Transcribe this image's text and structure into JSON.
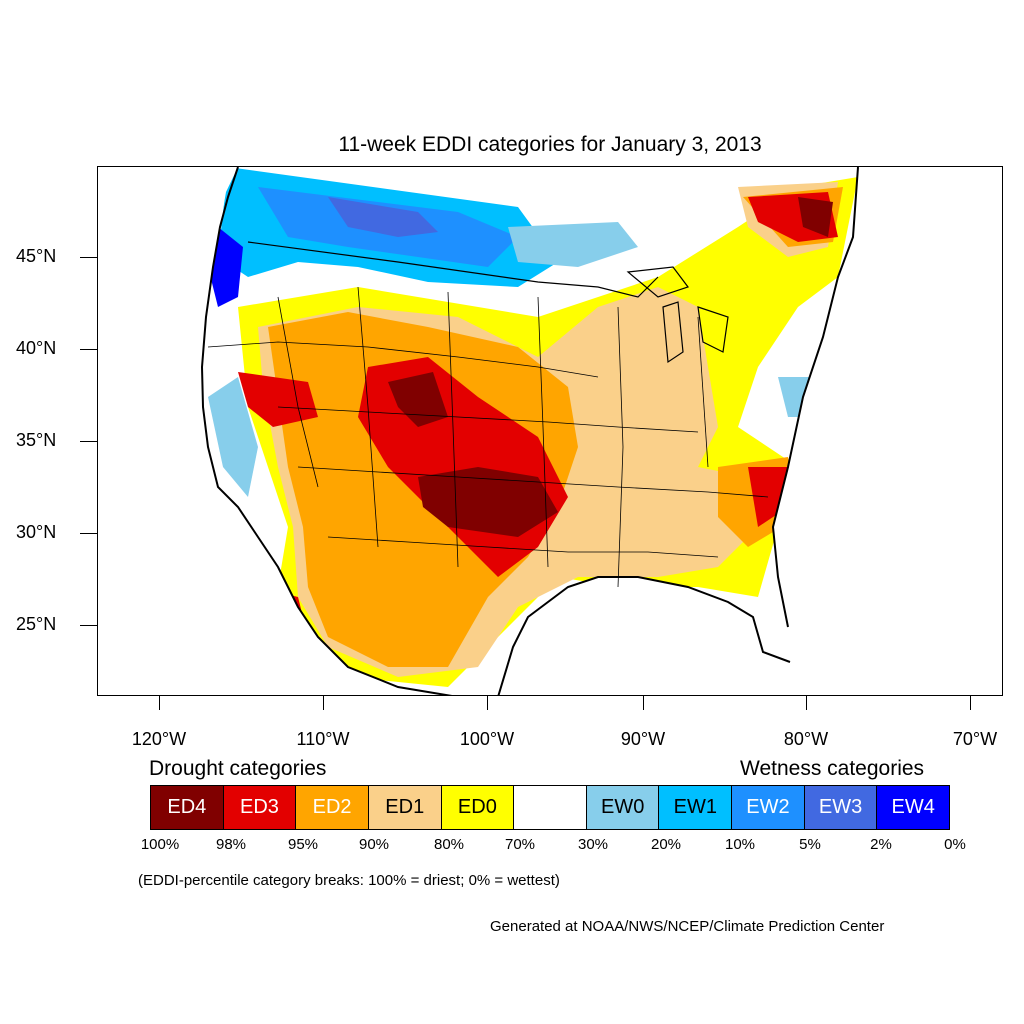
{
  "title": "11-week EDDI categories for January 3, 2013",
  "lat_labels": [
    "45°N",
    "40°N",
    "35°N",
    "30°N",
    "25°N"
  ],
  "lon_labels": [
    "120°W",
    "110°W",
    "100°W",
    "90°W",
    "80°W",
    "70°W"
  ],
  "legend": {
    "drought_heading": "Drought categories",
    "wetness_heading": "Wetness categories",
    "categories": [
      {
        "label": "ED4",
        "color": "#800000",
        "text_color": "#ffffff"
      },
      {
        "label": "ED3",
        "color": "#e30000",
        "text_color": "#ffffff"
      },
      {
        "label": "ED2",
        "color": "#ffa500",
        "text_color": "#ffffff"
      },
      {
        "label": "ED1",
        "color": "#fad08a",
        "text_color": "#000000"
      },
      {
        "label": "ED0",
        "color": "#ffff00",
        "text_color": "#000000"
      },
      {
        "label": "",
        "color": "#ffffff",
        "text_color": "#000000"
      },
      {
        "label": "EW0",
        "color": "#87ceeb",
        "text_color": "#000000"
      },
      {
        "label": "EW1",
        "color": "#00bfff",
        "text_color": "#000000"
      },
      {
        "label": "EW2",
        "color": "#1e90ff",
        "text_color": "#ffffff"
      },
      {
        "label": "EW3",
        "color": "#4169e1",
        "text_color": "#ffffff"
      },
      {
        "label": "EW4",
        "color": "#0000ff",
        "text_color": "#ffffff"
      }
    ],
    "percentile_breaks": [
      "100%",
      "98%",
      "95%",
      "90%",
      "80%",
      "70%",
      "30%",
      "20%",
      "10%",
      "5%",
      "2%",
      "0%"
    ]
  },
  "breaks_note": "(EDDI-percentile category breaks: 100% = driest; 0% = wettest)",
  "credit": "Generated at NOAA/NWS/NCEP/Climate Prediction Center"
}
